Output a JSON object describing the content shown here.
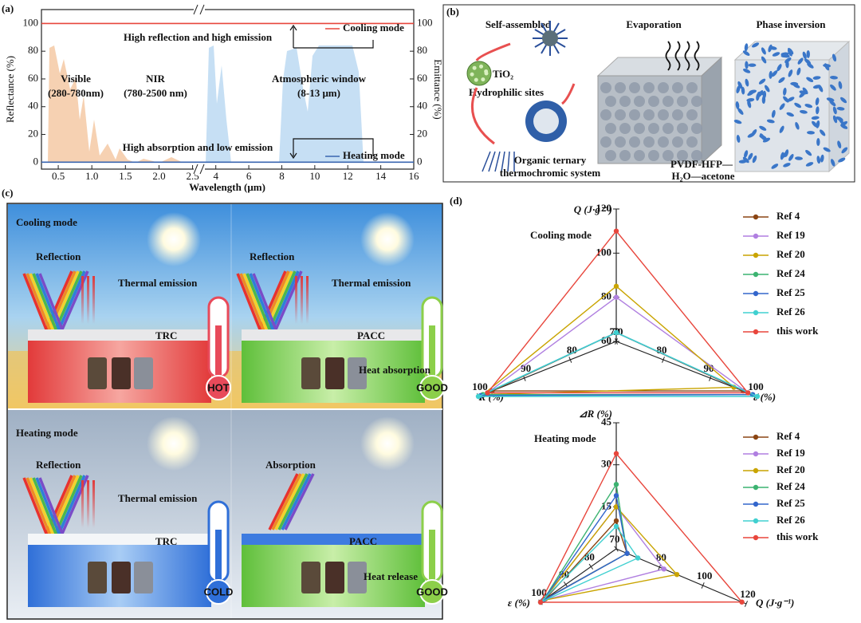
{
  "panel_labels": {
    "a": "(a)",
    "b": "(b)",
    "c": "(c)",
    "d": "(d)"
  },
  "chart_data": [
    {
      "type": "line",
      "xlabel": "Wavelength (μm)",
      "ylabel": "Reflectance (%)",
      "y2label": "Emittance (%)",
      "ylim": [
        -5,
        110
      ],
      "yticks": [
        0,
        20,
        40,
        60,
        80,
        100
      ],
      "y2lim": [
        -5,
        110
      ],
      "y2ticks": [
        0,
        20,
        40,
        60,
        80,
        100
      ],
      "x_segments": [
        {
          "xlim": [
            0.25,
            2.6
          ],
          "xticks": [
            0.5,
            {
              "value": 1,
              "label": "1.0"
            },
            1.5,
            {
              "value": 2,
              "label": "2.0"
            },
            2.5
          ]
        },
        {
          "xlim": [
            3,
            16
          ],
          "xticks": [
            4,
            6,
            8,
            10,
            12,
            14,
            16
          ]
        }
      ],
      "series": [
        {
          "name": "Cooling mode",
          "color": "#e8463c",
          "x": [
            0.25,
            16
          ],
          "values": [
            100,
            100
          ]
        },
        {
          "name": "Heating mode",
          "color": "#3a66b0",
          "x": [
            0.25,
            16
          ],
          "values": [
            0,
            0
          ]
        }
      ],
      "annotations": [
        "Visible",
        "(280-780nm)",
        "NIR",
        "(780-2500 nm)",
        "Atmospheric window",
        "(8-13 μm)",
        "High reflection and high emission",
        "High absorption and low emission"
      ]
    },
    {
      "type": "radar",
      "title": "Cooling mode",
      "axes": [
        {
          "label": "Q (J·g⁻¹)",
          "lim": [
            60,
            120
          ],
          "ticks": [
            60,
            80,
            100,
            120
          ]
        },
        {
          "label": "R (%)",
          "lim": [
            70,
            100
          ],
          "ticks": [
            70,
            80,
            90,
            100
          ]
        },
        {
          "label": "ε (%)",
          "lim": [
            70,
            100
          ],
          "ticks": [
            70,
            80,
            90,
            100
          ]
        }
      ],
      "series": [
        {
          "name": "Ref 4",
          "color": "#8b4513",
          "values": [
            64,
            97,
            97
          ]
        },
        {
          "name": "Ref 19",
          "color": "#b07fe0",
          "values": [
            80,
            98,
            98
          ]
        },
        {
          "name": "Ref 20",
          "color": "#c9a400",
          "values": [
            85,
            99,
            95
          ]
        },
        {
          "name": "Ref 24",
          "color": "#3cb371",
          "values": [
            64,
            99,
            99
          ]
        },
        {
          "name": "Ref 25",
          "color": "#3366cc",
          "values": [
            64,
            99.5,
            99
          ]
        },
        {
          "name": "Ref 26",
          "color": "#40d0d0",
          "values": [
            64,
            100,
            100
          ]
        },
        {
          "name": "this work",
          "color": "#e8463c",
          "values": [
            110,
            98,
            98
          ]
        }
      ]
    },
    {
      "type": "radar",
      "title": "Heating mode",
      "axes": [
        {
          "label": "⊿R (%)",
          "lim": [
            0,
            45
          ],
          "ticks": [
            15,
            30,
            45
          ]
        },
        {
          "label": "ε (%)",
          "lim": [
            70,
            100
          ],
          "ticks": [
            70,
            80,
            90,
            100
          ]
        },
        {
          "label": "Q (J·g⁻¹)",
          "lim": [
            60,
            120
          ],
          "ticks": [
            80,
            100,
            120
          ]
        }
      ],
      "series": [
        {
          "name": "Ref 4",
          "color": "#8b4513",
          "values": [
            10,
            98,
            65
          ]
        },
        {
          "name": "Ref 19",
          "color": "#b07fe0",
          "values": [
            15,
            99,
            82
          ]
        },
        {
          "name": "Ref 20",
          "color": "#c9a400",
          "values": [
            15,
            99,
            88
          ]
        },
        {
          "name": "Ref 24",
          "color": "#3cb371",
          "values": [
            23,
            99,
            65
          ]
        },
        {
          "name": "Ref 25",
          "color": "#3366cc",
          "values": [
            19,
            99,
            65
          ]
        },
        {
          "name": "Ref 26",
          "color": "#40d0d0",
          "values": [
            8,
            100,
            70
          ]
        },
        {
          "name": "this work",
          "color": "#e8463c",
          "values": [
            34,
            100,
            118
          ]
        }
      ]
    }
  ],
  "diagram_b": {
    "steps": [
      "Self-assembled",
      "Evaporation",
      "Phase inversion"
    ],
    "tio2": "TiO₂",
    "sites": "Hydrophilic sites",
    "system": [
      "Organic ternary",
      "thermochromic system"
    ],
    "solvent": [
      "PVDF-HFP—",
      "H₂O—acetone"
    ]
  },
  "illustration_c": {
    "modes": [
      {
        "title": "Cooling mode",
        "scenes": [
          {
            "labels": [
              "Reflection",
              "Thermal emission",
              "TRC"
            ],
            "badge": "HOT"
          },
          {
            "labels": [
              "Reflection",
              "Thermal emission",
              "PACC",
              "Heat absorption"
            ],
            "badge": "GOOD"
          }
        ]
      },
      {
        "title": "Heating mode",
        "scenes": [
          {
            "labels": [
              "Reflection",
              "Thermal emission",
              "TRC"
            ],
            "badge": "COLD"
          },
          {
            "labels": [
              "Absorption",
              "PACC",
              "Heat release"
            ],
            "badge": "GOOD"
          }
        ]
      }
    ]
  }
}
